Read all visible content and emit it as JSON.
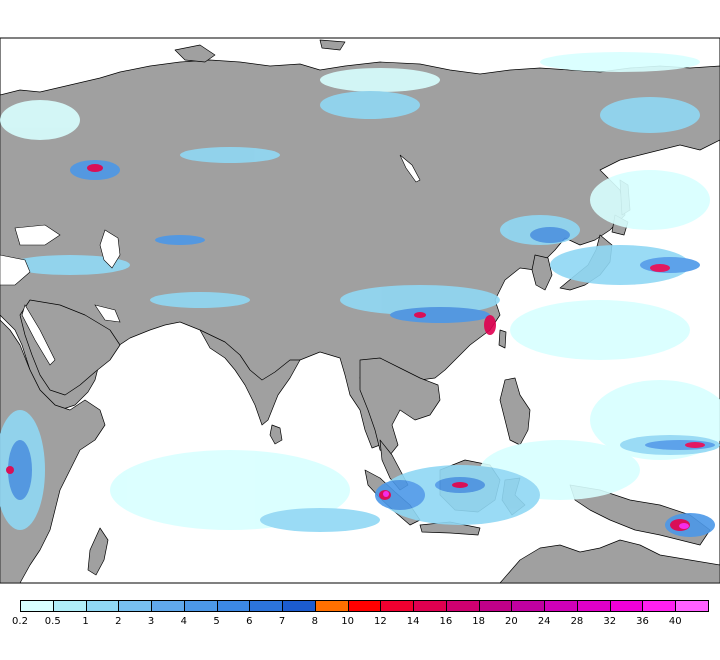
{
  "map": {
    "land_color": "#a0a0a0",
    "ocean_color": "#ffffff",
    "border_color": "#000000",
    "regions": [
      "Europe",
      "Russia",
      "Middle East",
      "India",
      "China",
      "Japan",
      "Southeast Asia",
      "Indonesia",
      "Australia",
      "East Africa"
    ]
  },
  "legend": {
    "bins": [
      {
        "label": "0.2",
        "color": "#d8ffff"
      },
      {
        "label": "0.5",
        "color": "#b0eef8"
      },
      {
        "label": "1",
        "color": "#90d8f4"
      },
      {
        "label": "2",
        "color": "#78c0f0"
      },
      {
        "label": "3",
        "color": "#60a8ec"
      },
      {
        "label": "4",
        "color": "#4c98e8"
      },
      {
        "label": "5",
        "color": "#3c88e4"
      },
      {
        "label": "6",
        "color": "#2c74dc"
      },
      {
        "label": "7",
        "color": "#1c5cd0"
      },
      {
        "label": "8",
        "color": "#ff7000"
      },
      {
        "label": "10",
        "color": "#ff0000"
      },
      {
        "label": "12",
        "color": "#f00030"
      },
      {
        "label": "14",
        "color": "#e00050"
      },
      {
        "label": "16",
        "color": "#d00070"
      },
      {
        "label": "18",
        "color": "#c00088"
      },
      {
        "label": "20",
        "color": "#c000a0"
      },
      {
        "label": "24",
        "color": "#d000b8"
      },
      {
        "label": "28",
        "color": "#e000c8"
      },
      {
        "label": "32",
        "color": "#f000d8"
      },
      {
        "label": "36",
        "color": "#ff20f0"
      },
      {
        "label": "40",
        "color": "#ff60ff"
      }
    ]
  }
}
